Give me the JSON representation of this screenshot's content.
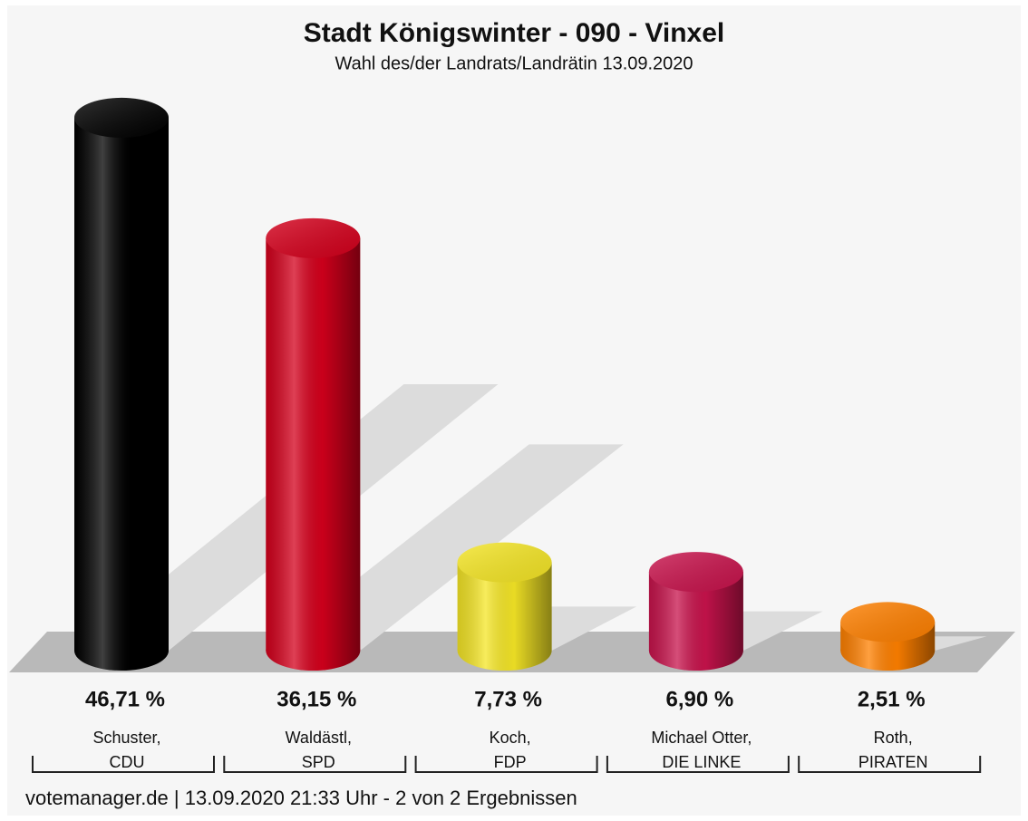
{
  "chart_data": {
    "type": "bar",
    "title": "Stadt Königswinter - 090 - Vinxel",
    "subtitle": "Wahl des/der Landrats/Landrätin 13.09.2020",
    "candidates": [
      "Schuster,",
      "Waldästl,",
      "Koch,",
      "Michael Otter,",
      "Roth,"
    ],
    "categories": [
      "CDU",
      "SPD",
      "FDP",
      "DIE LINKE",
      "PIRATEN"
    ],
    "values": [
      46.71,
      36.15,
      7.73,
      6.9,
      2.51
    ],
    "value_labels": [
      "46,71 %",
      "36,15 %",
      "7,73 %",
      "6,90 %",
      "2,51 %"
    ],
    "colors": [
      "#000000",
      "#d4001c",
      "#f5e626",
      "#c8134c",
      "#ff8000"
    ],
    "footer": "votemanager.de | 13.09.2020 21:33 Uhr - 2 von 2 Ergebnissen"
  }
}
